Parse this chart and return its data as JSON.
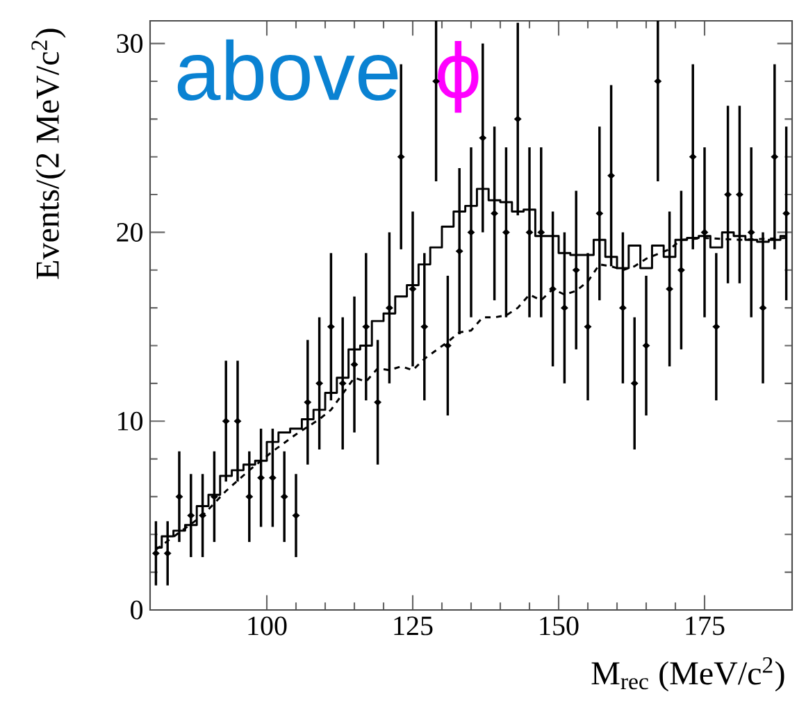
{
  "chart_data": {
    "type": "scatter",
    "xlabel": "M$_{rec}$ (MeV/c$^{2}$)",
    "ylabel": "Events/(2 MeV/c$^{2}$)",
    "annotations": [
      "above",
      "ϕ"
    ],
    "xlim": [
      80,
      190
    ],
    "ylim": [
      0,
      31.2
    ],
    "xticks": [
      100,
      125,
      150,
      175
    ],
    "yticks": [
      0,
      10,
      20,
      30
    ],
    "grid": false,
    "marker": "diamond",
    "series": [
      {
        "color": "#000000",
        "x": [
          81,
          83,
          85,
          87,
          89,
          91,
          93,
          95,
          97,
          99,
          101,
          103,
          105,
          107,
          109,
          111,
          113,
          115,
          117,
          119,
          121,
          123,
          125,
          127,
          129,
          131,
          133,
          135,
          137,
          139,
          141,
          143,
          145,
          147,
          149,
          151,
          153,
          155,
          157,
          159,
          161,
          163,
          165,
          167,
          169,
          171,
          173,
          175,
          177,
          179,
          181,
          183,
          185,
          187,
          189
        ],
        "values": [
          3,
          3,
          6,
          5,
          5,
          6,
          10,
          10,
          6,
          7,
          7,
          6,
          5,
          11,
          12,
          15,
          12,
          13,
          15,
          11,
          16,
          24,
          17,
          15,
          28,
          14,
          19,
          20,
          25,
          21,
          20,
          26,
          20,
          20,
          17,
          16,
          18,
          15,
          21,
          23,
          16,
          12,
          14,
          28,
          17,
          18,
          24,
          20,
          15,
          22,
          22,
          20,
          16,
          24,
          21
        ],
        "errors": [
          1.7,
          1.7,
          2.4,
          2.2,
          2.2,
          2.4,
          3.2,
          3.2,
          2.4,
          2.6,
          2.6,
          2.4,
          2.2,
          3.3,
          3.5,
          3.9,
          3.5,
          3.6,
          3.9,
          3.3,
          4,
          4.9,
          4.1,
          3.9,
          [
            22.7,
            31.2
          ],
          3.7,
          4.4,
          4.5,
          5,
          4.6,
          4.5,
          5.1,
          4.5,
          4.5,
          4.1,
          4,
          4.2,
          3.9,
          4.6,
          4.8,
          4,
          3.5,
          3.7,
          [
            22.7,
            31.2
          ],
          4.1,
          4.2,
          4.9,
          4.5,
          3.9,
          4.7,
          4.7,
          4.5,
          4,
          4.9,
          4.6
        ]
      },
      {
        "type": "step",
        "color": "#000000",
        "line_style": "solid",
        "marker": "none",
        "x": [
          81,
          83,
          85,
          87,
          89,
          91,
          93,
          95,
          97,
          99,
          101,
          103,
          105,
          107,
          109,
          111,
          113,
          115,
          117,
          119,
          121,
          123,
          125,
          127,
          129,
          131,
          133,
          135,
          137,
          139,
          141,
          143,
          145,
          147,
          149,
          151,
          153,
          155,
          157,
          159,
          161,
          163,
          165,
          167,
          169,
          171,
          173,
          175,
          177,
          179,
          181,
          183,
          185,
          187,
          189
        ],
        "values": [
          3.3,
          3.9,
          4.2,
          4.5,
          5.5,
          6.1,
          7.1,
          7.4,
          7.7,
          7.9,
          8.9,
          9.4,
          9.6,
          10.1,
          10.6,
          11.5,
          12.3,
          13.8,
          14.0,
          15.3,
          15.7,
          16.6,
          17.2,
          18.3,
          19.2,
          20.3,
          21.1,
          21.4,
          22.3,
          21.7,
          21.6,
          21.1,
          21.2,
          19.8,
          19.8,
          18.9,
          18.8,
          18.8,
          19.6,
          18.7,
          18.1,
          19.3,
          18.1,
          19.3,
          18.7,
          19.6,
          19.7,
          19.8,
          19.2,
          20.0,
          19.8,
          19.6,
          19.5,
          19.6,
          19.8
        ]
      },
      {
        "type": "line",
        "color": "#000000",
        "line_style": "dashed",
        "marker": "none",
        "x": [
          81,
          85,
          89,
          93,
          97,
          101,
          105,
          109,
          111,
          115,
          117,
          119,
          121,
          123,
          125,
          127,
          131,
          133,
          135,
          137,
          139,
          141,
          143,
          145,
          147,
          149,
          151,
          153,
          155,
          157,
          159,
          161,
          163,
          165,
          169,
          171,
          175,
          181,
          189
        ],
        "values": [
          3.2,
          4.1,
          5.0,
          6.3,
          7.4,
          8.4,
          9.3,
          10.1,
          10.6,
          12.3,
          12.1,
          12.8,
          12.7,
          12.9,
          12.7,
          13.3,
          14.2,
          14.7,
          14.8,
          15.5,
          15.5,
          15.6,
          16.0,
          16.7,
          16.4,
          17.0,
          16.7,
          16.9,
          17.4,
          18.3,
          18.2,
          18.0,
          18.2,
          18.6,
          19.1,
          19.6,
          19.7,
          19.6,
          19.7
        ]
      }
    ]
  }
}
